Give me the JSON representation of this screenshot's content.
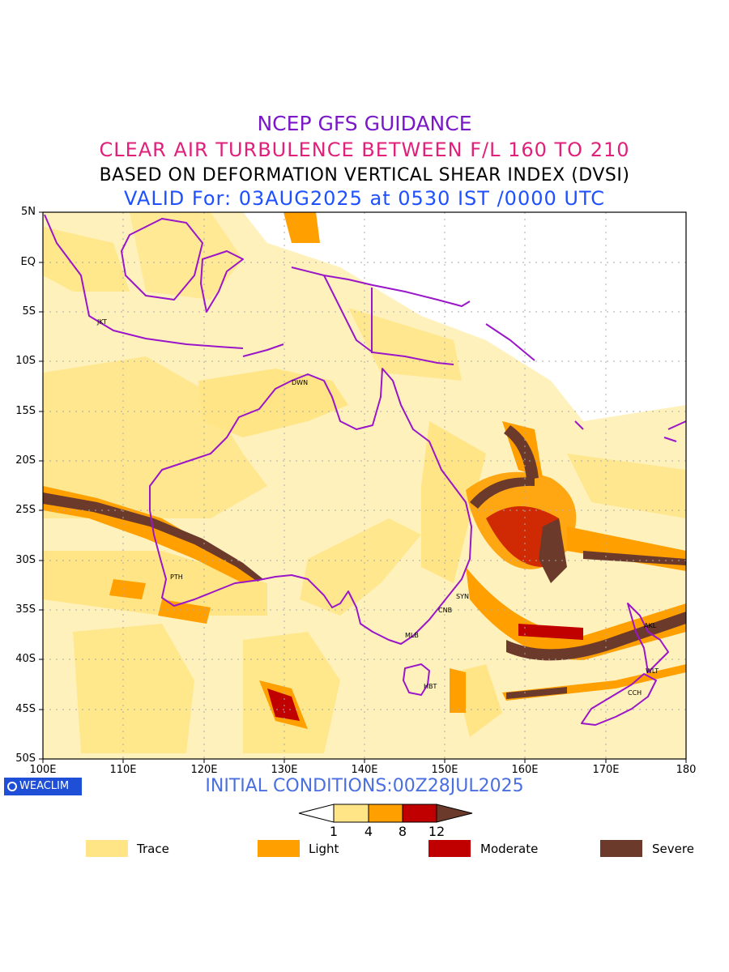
{
  "titles": {
    "line1": "NCEP GFS GUIDANCE",
    "line2": "CLEAR AIR TURBULENCE BETWEEN F/L 160 TO 210",
    "line3": "BASED ON DEFORMATION VERTICAL SHEAR INDEX (DVSI)",
    "line4": "VALID For: 03AUG2025 at 0530 IST /0000 UTC"
  },
  "colors": {
    "title1": "#7a18c8",
    "title2": "#e0207a",
    "title3": "#000000",
    "title4": "#1e50ff",
    "coast": "#9a16c8",
    "trace": "#ffe585",
    "light": "#ff9f00",
    "moderate": "#c00000",
    "severe": "#6b3a2a",
    "grid": "#aaaaaa"
  },
  "axes": {
    "lat_labels": [
      "5N",
      "EQ",
      "5S",
      "10S",
      "15S",
      "20S",
      "25S",
      "30S",
      "35S",
      "40S",
      "45S",
      "50S"
    ],
    "lon_labels": [
      "100E",
      "110E",
      "120E",
      "130E",
      "140E",
      "150E",
      "160E",
      "170E",
      "180"
    ]
  },
  "cities": {
    "jkt": "JKT",
    "dwn": "DWN",
    "pth": "PTH",
    "syn": "SYN",
    "cnb": "CNB",
    "mlb": "MLB",
    "hbt": "HBT",
    "akl": "AKL",
    "wlt": "WLT",
    "cch": "CCH"
  },
  "logo": "WEACLIM",
  "init_text": "INITIAL CONDITIONS:00Z28JUL2025",
  "colorbar": {
    "ticks": [
      "1",
      "4",
      "8",
      "12"
    ]
  },
  "legend": {
    "trace": "Trace",
    "light": "Light",
    "moderate": "Moderate",
    "severe": "Severe"
  }
}
